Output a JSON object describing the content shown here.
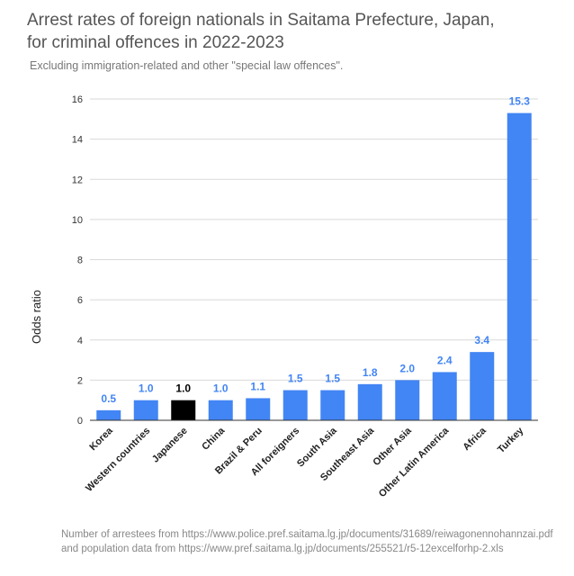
{
  "chart_data": {
    "type": "bar",
    "title_lines": [
      "Arrest rates of foreign nationals in Saitama Prefecture, Japan,",
      "for criminal offences in 2022-2023"
    ],
    "subtitle": "Excluding immigration-related and other \"special law offences\".",
    "ylabel": "Odds ratio",
    "xlabel": "",
    "ylim": [
      0,
      16
    ],
    "yticks": [
      0,
      2,
      4,
      6,
      8,
      10,
      12,
      14,
      16
    ],
    "grid": true,
    "legend": "none",
    "categories": [
      "Korea",
      "Western countries",
      "Japanese",
      "China",
      "Brazil & Peru",
      "All foreigners",
      "South Asia",
      "Southeast Asia",
      "Other Asia",
      "Other Latin America",
      "Africa",
      "Turkey"
    ],
    "values": [
      0.5,
      1.0,
      1.0,
      1.0,
      1.1,
      1.5,
      1.5,
      1.8,
      2.0,
      2.4,
      3.4,
      15.3
    ],
    "value_labels": [
      "0.5",
      "1.0",
      "1.0",
      "1.0",
      "1.1",
      "1.5",
      "1.5",
      "1.8",
      "2.0",
      "2.4",
      "3.4",
      "15.3"
    ],
    "highlight_category": "Japanese",
    "colors": {
      "bar": "#4285f4",
      "highlight": "#000000",
      "grid": "#d9d9d9",
      "axis": "#333333"
    }
  },
  "footnote_lines": [
    "Number of arrestees from https://www.police.pref.saitama.lg.jp/documents/31689/reiwagonennohannzai.pdf",
    "and population data from https://www.pref.saitama.lg.jp/documents/255521/r5-12excelforhp-2.xls"
  ]
}
